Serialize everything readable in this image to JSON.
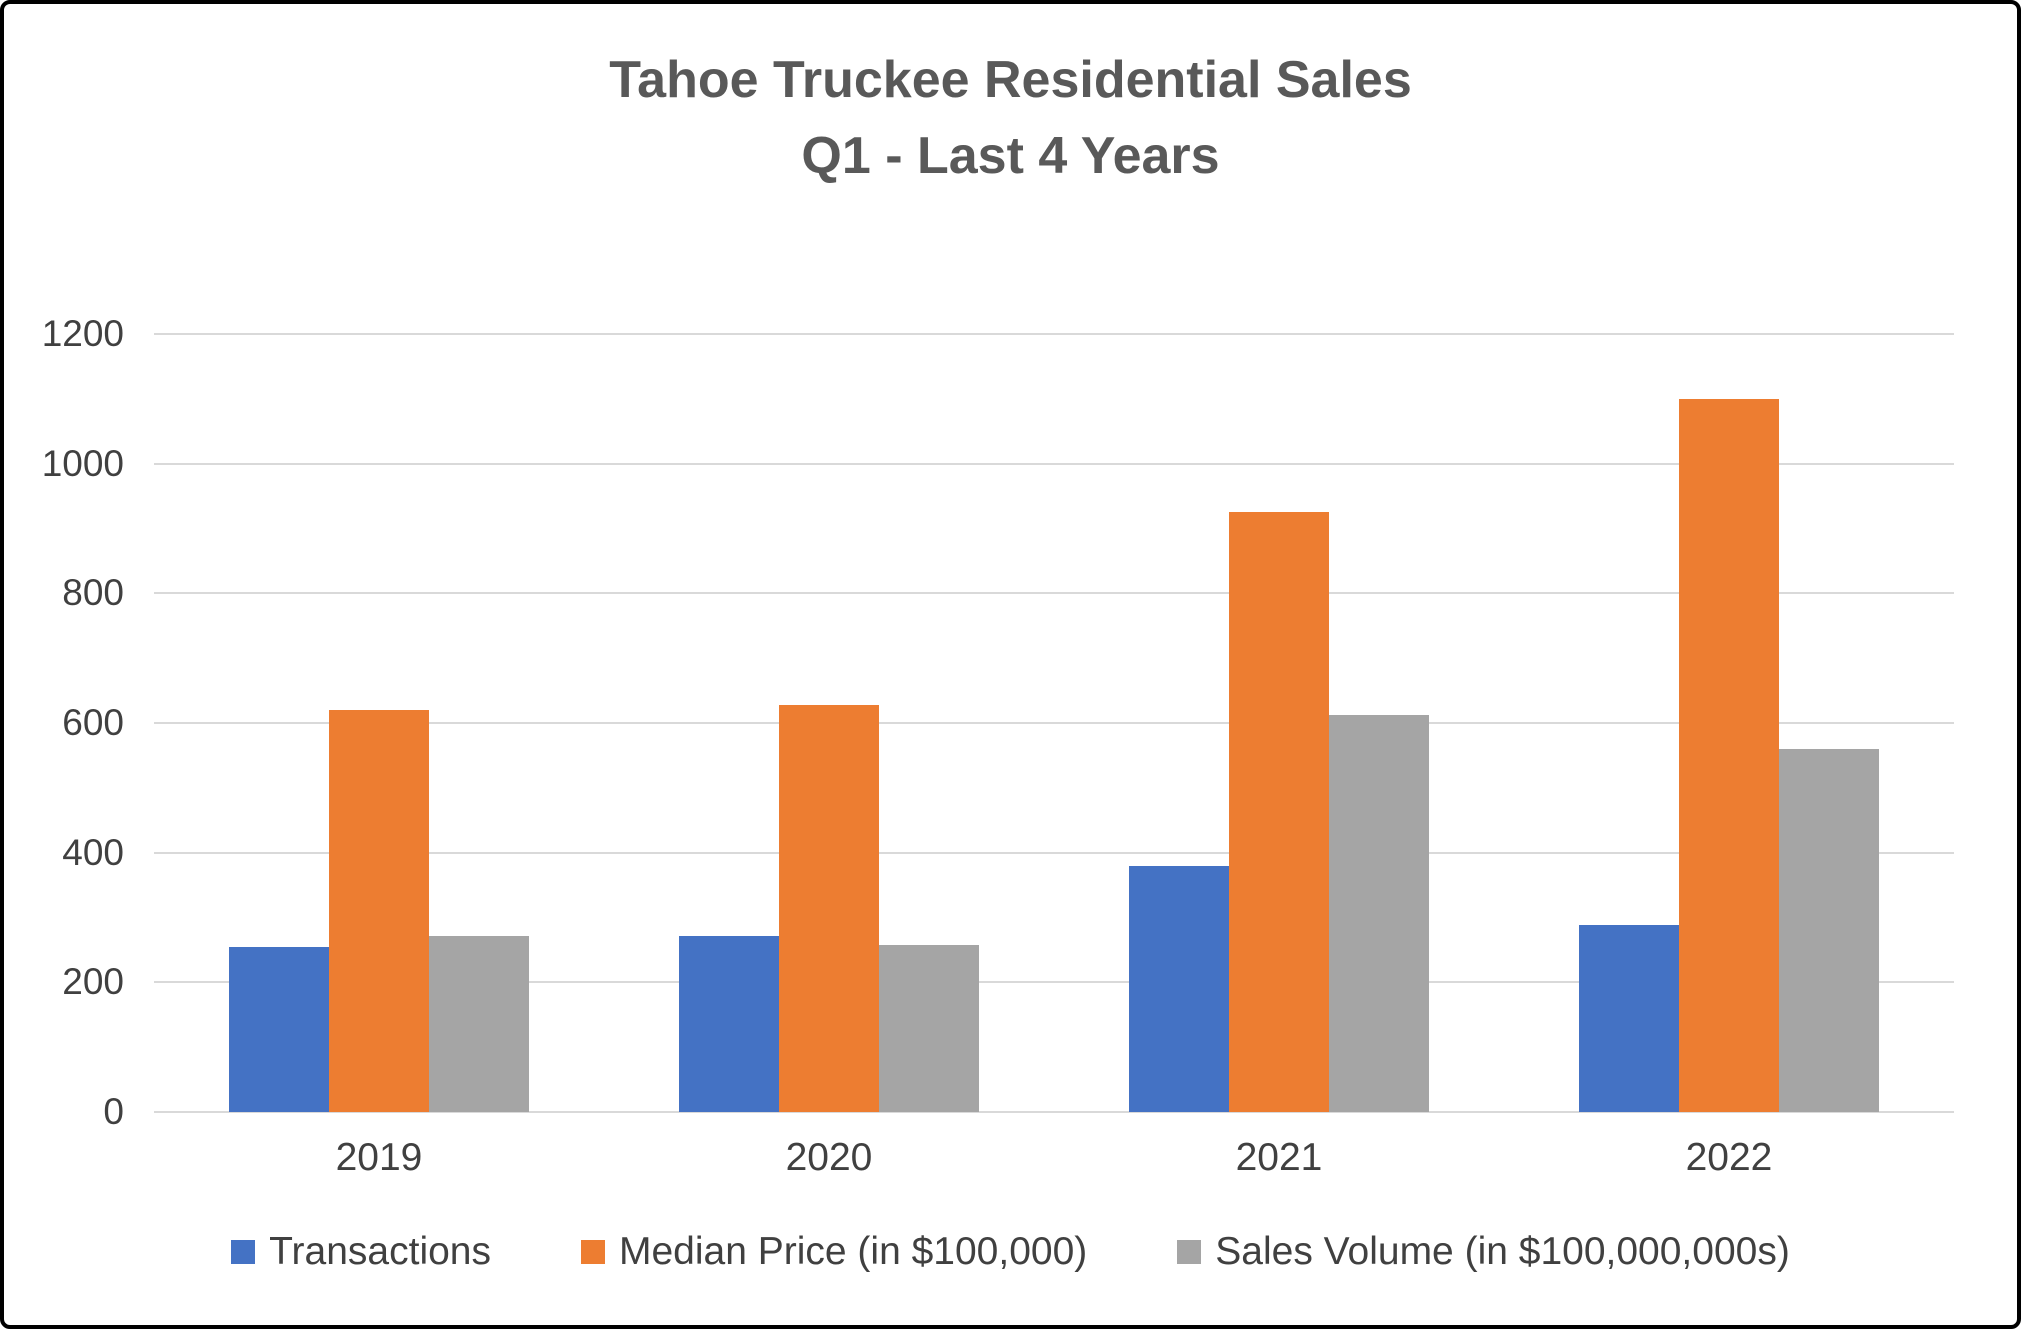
{
  "title_line1": "Tahoe Truckee Residential Sales",
  "title_line2": "Q1 - Last 4 Years",
  "chart_data": {
    "type": "bar",
    "title": "Tahoe Truckee Residential Sales Q1 - Last 4 Years",
    "categories": [
      "2019",
      "2020",
      "2021",
      "2022"
    ],
    "series": [
      {
        "name": "Transactions",
        "color": "#4472c4",
        "values": [
          255,
          272,
          380,
          288
        ]
      },
      {
        "name": "Median Price (in $100,000)",
        "color": "#ed7d31",
        "values": [
          620,
          628,
          925,
          1100
        ]
      },
      {
        "name": "Sales Volume (in $100,000,000s)",
        "color": "#a5a5a5",
        "values": [
          272,
          258,
          612,
          560
        ]
      }
    ],
    "xlabel": "",
    "ylabel": "",
    "ylim": [
      0,
      1200
    ],
    "yticks": [
      0,
      200,
      400,
      600,
      800,
      1000,
      1200
    ],
    "grid": true,
    "legend_position": "bottom"
  },
  "colors": {
    "title_text": "#595959",
    "axis_text": "#404040",
    "gridline": "#d9d9d9",
    "frame_border": "#000000",
    "background": "#ffffff"
  }
}
